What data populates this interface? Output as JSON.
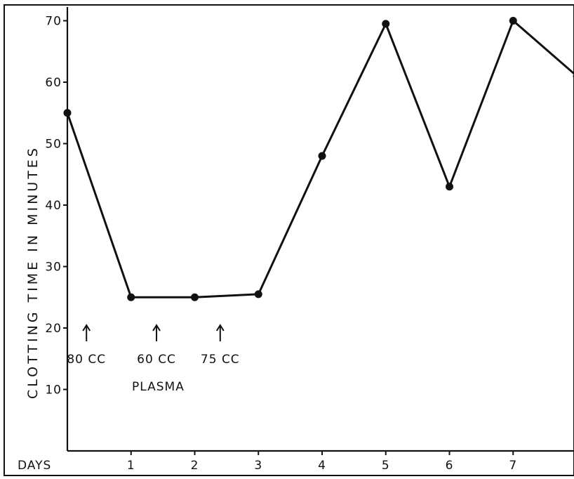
{
  "chart_data": {
    "type": "line",
    "title": "",
    "xlabel": "DAYS",
    "ylabel": "CLOTTING TIME IN MINUTES",
    "xlim": [
      0,
      8
    ],
    "ylim": [
      0,
      70
    ],
    "x_ticks": [
      1,
      2,
      3,
      4,
      5,
      6,
      7
    ],
    "y_ticks": [
      10,
      20,
      30,
      40,
      50,
      60,
      70
    ],
    "grid": false,
    "series": [
      {
        "x": [
          0,
          1,
          2,
          3,
          4,
          5,
          6,
          7,
          8
        ],
        "values": [
          55,
          25,
          25,
          25.5,
          48,
          69.5,
          43,
          70,
          61
        ]
      }
    ],
    "annotations": [
      {
        "text": "80 CC",
        "x": 0.3
      },
      {
        "text": "60 CC",
        "x": 1.4
      },
      {
        "text": "75 CC",
        "x": 2.4
      }
    ],
    "annotation_group_label": "PLASMA"
  }
}
